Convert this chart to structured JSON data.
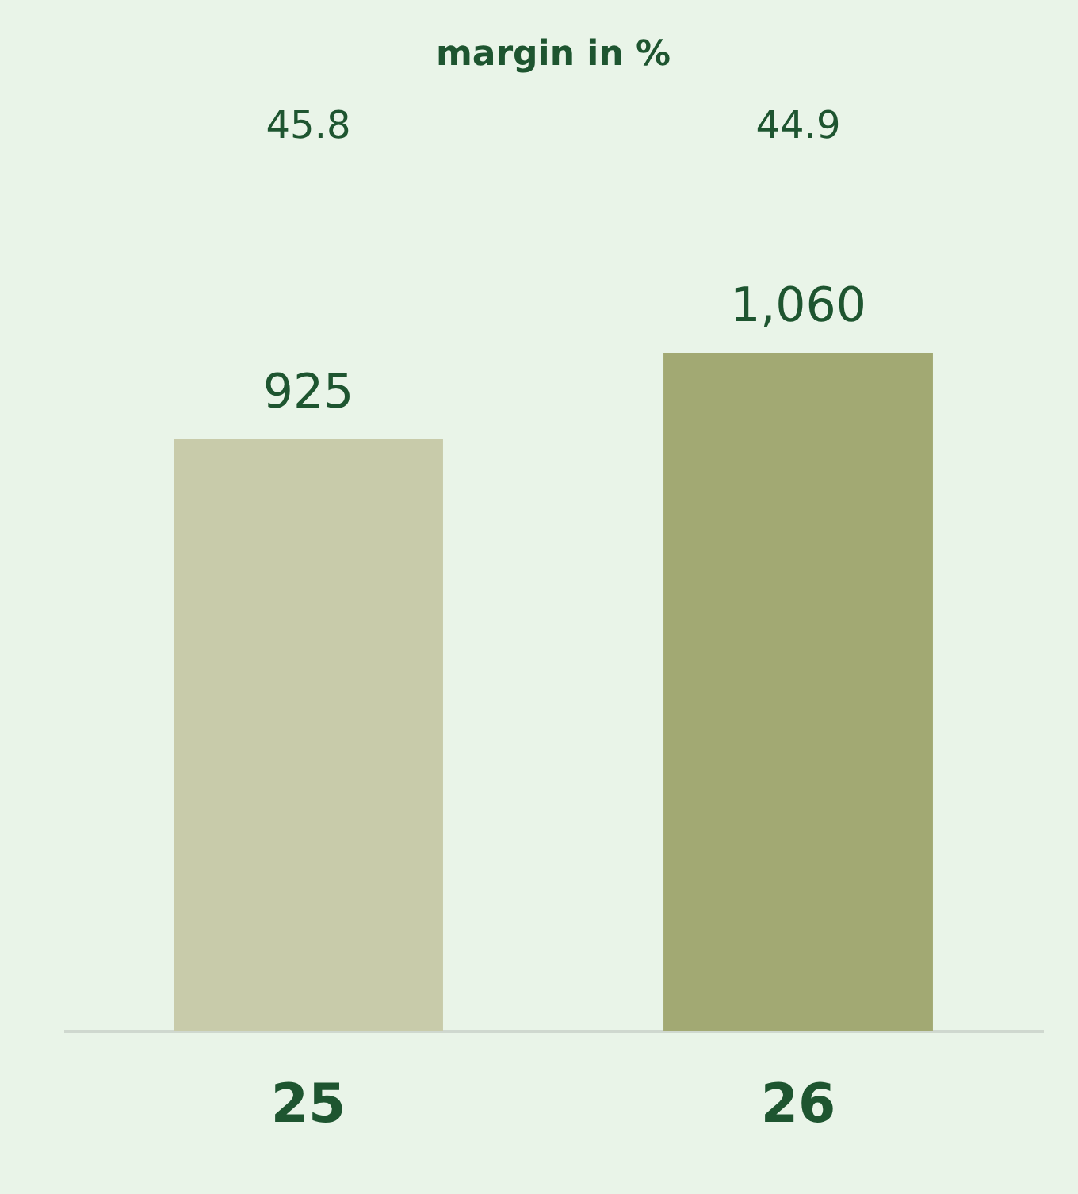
{
  "chart_data": {
    "type": "bar",
    "title": "margin in %",
    "categories": [
      "25",
      "26"
    ],
    "values": [
      925,
      1060
    ],
    "colors": [
      "#c8cbaa",
      "#a2a973"
    ],
    "value_labels": [
      "925",
      "1,060"
    ],
    "annotations": [
      "45.8",
      "44.9"
    ]
  }
}
